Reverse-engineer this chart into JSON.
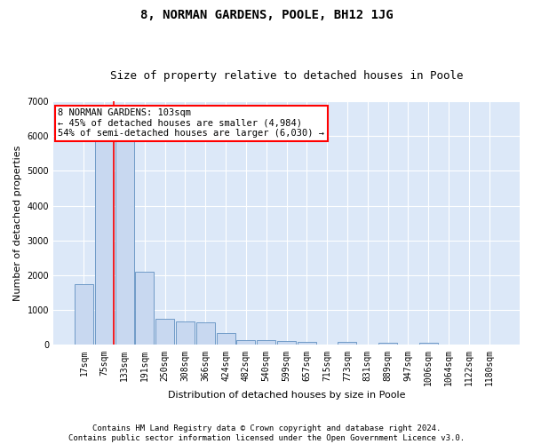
{
  "title": "8, NORMAN GARDENS, POOLE, BH12 1JG",
  "subtitle": "Size of property relative to detached houses in Poole",
  "xlabel": "Distribution of detached houses by size in Poole",
  "ylabel": "Number of detached properties",
  "bin_labels": [
    "17sqm",
    "75sqm",
    "133sqm",
    "191sqm",
    "250sqm",
    "308sqm",
    "366sqm",
    "424sqm",
    "482sqm",
    "540sqm",
    "599sqm",
    "657sqm",
    "715sqm",
    "773sqm",
    "831sqm",
    "889sqm",
    "947sqm",
    "1006sqm",
    "1064sqm",
    "1122sqm",
    "1180sqm"
  ],
  "bar_values": [
    1750,
    5850,
    5850,
    2100,
    750,
    680,
    650,
    340,
    130,
    130,
    120,
    80,
    0,
    80,
    0,
    70,
    0,
    60,
    0,
    0,
    0
  ],
  "bar_color": "#c8d8f0",
  "bar_edgecolor": "#6090c0",
  "vline_color": "red",
  "vline_x": 1.47,
  "annotation_text": "8 NORMAN GARDENS: 103sqm\n← 45% of detached houses are smaller (4,984)\n54% of semi-detached houses are larger (6,030) →",
  "annotation_box_facecolor": "white",
  "annotation_box_edgecolor": "red",
  "ylim": [
    0,
    7000
  ],
  "yticks": [
    0,
    1000,
    2000,
    3000,
    4000,
    5000,
    6000,
    7000
  ],
  "footer_line1": "Contains HM Land Registry data © Crown copyright and database right 2024.",
  "footer_line2": "Contains public sector information licensed under the Open Government Licence v3.0.",
  "bg_color": "#dce8f8",
  "title_fontsize": 10,
  "subtitle_fontsize": 9,
  "axis_label_fontsize": 8,
  "tick_fontsize": 7,
  "annotation_fontsize": 7.5,
  "footer_fontsize": 6.5
}
